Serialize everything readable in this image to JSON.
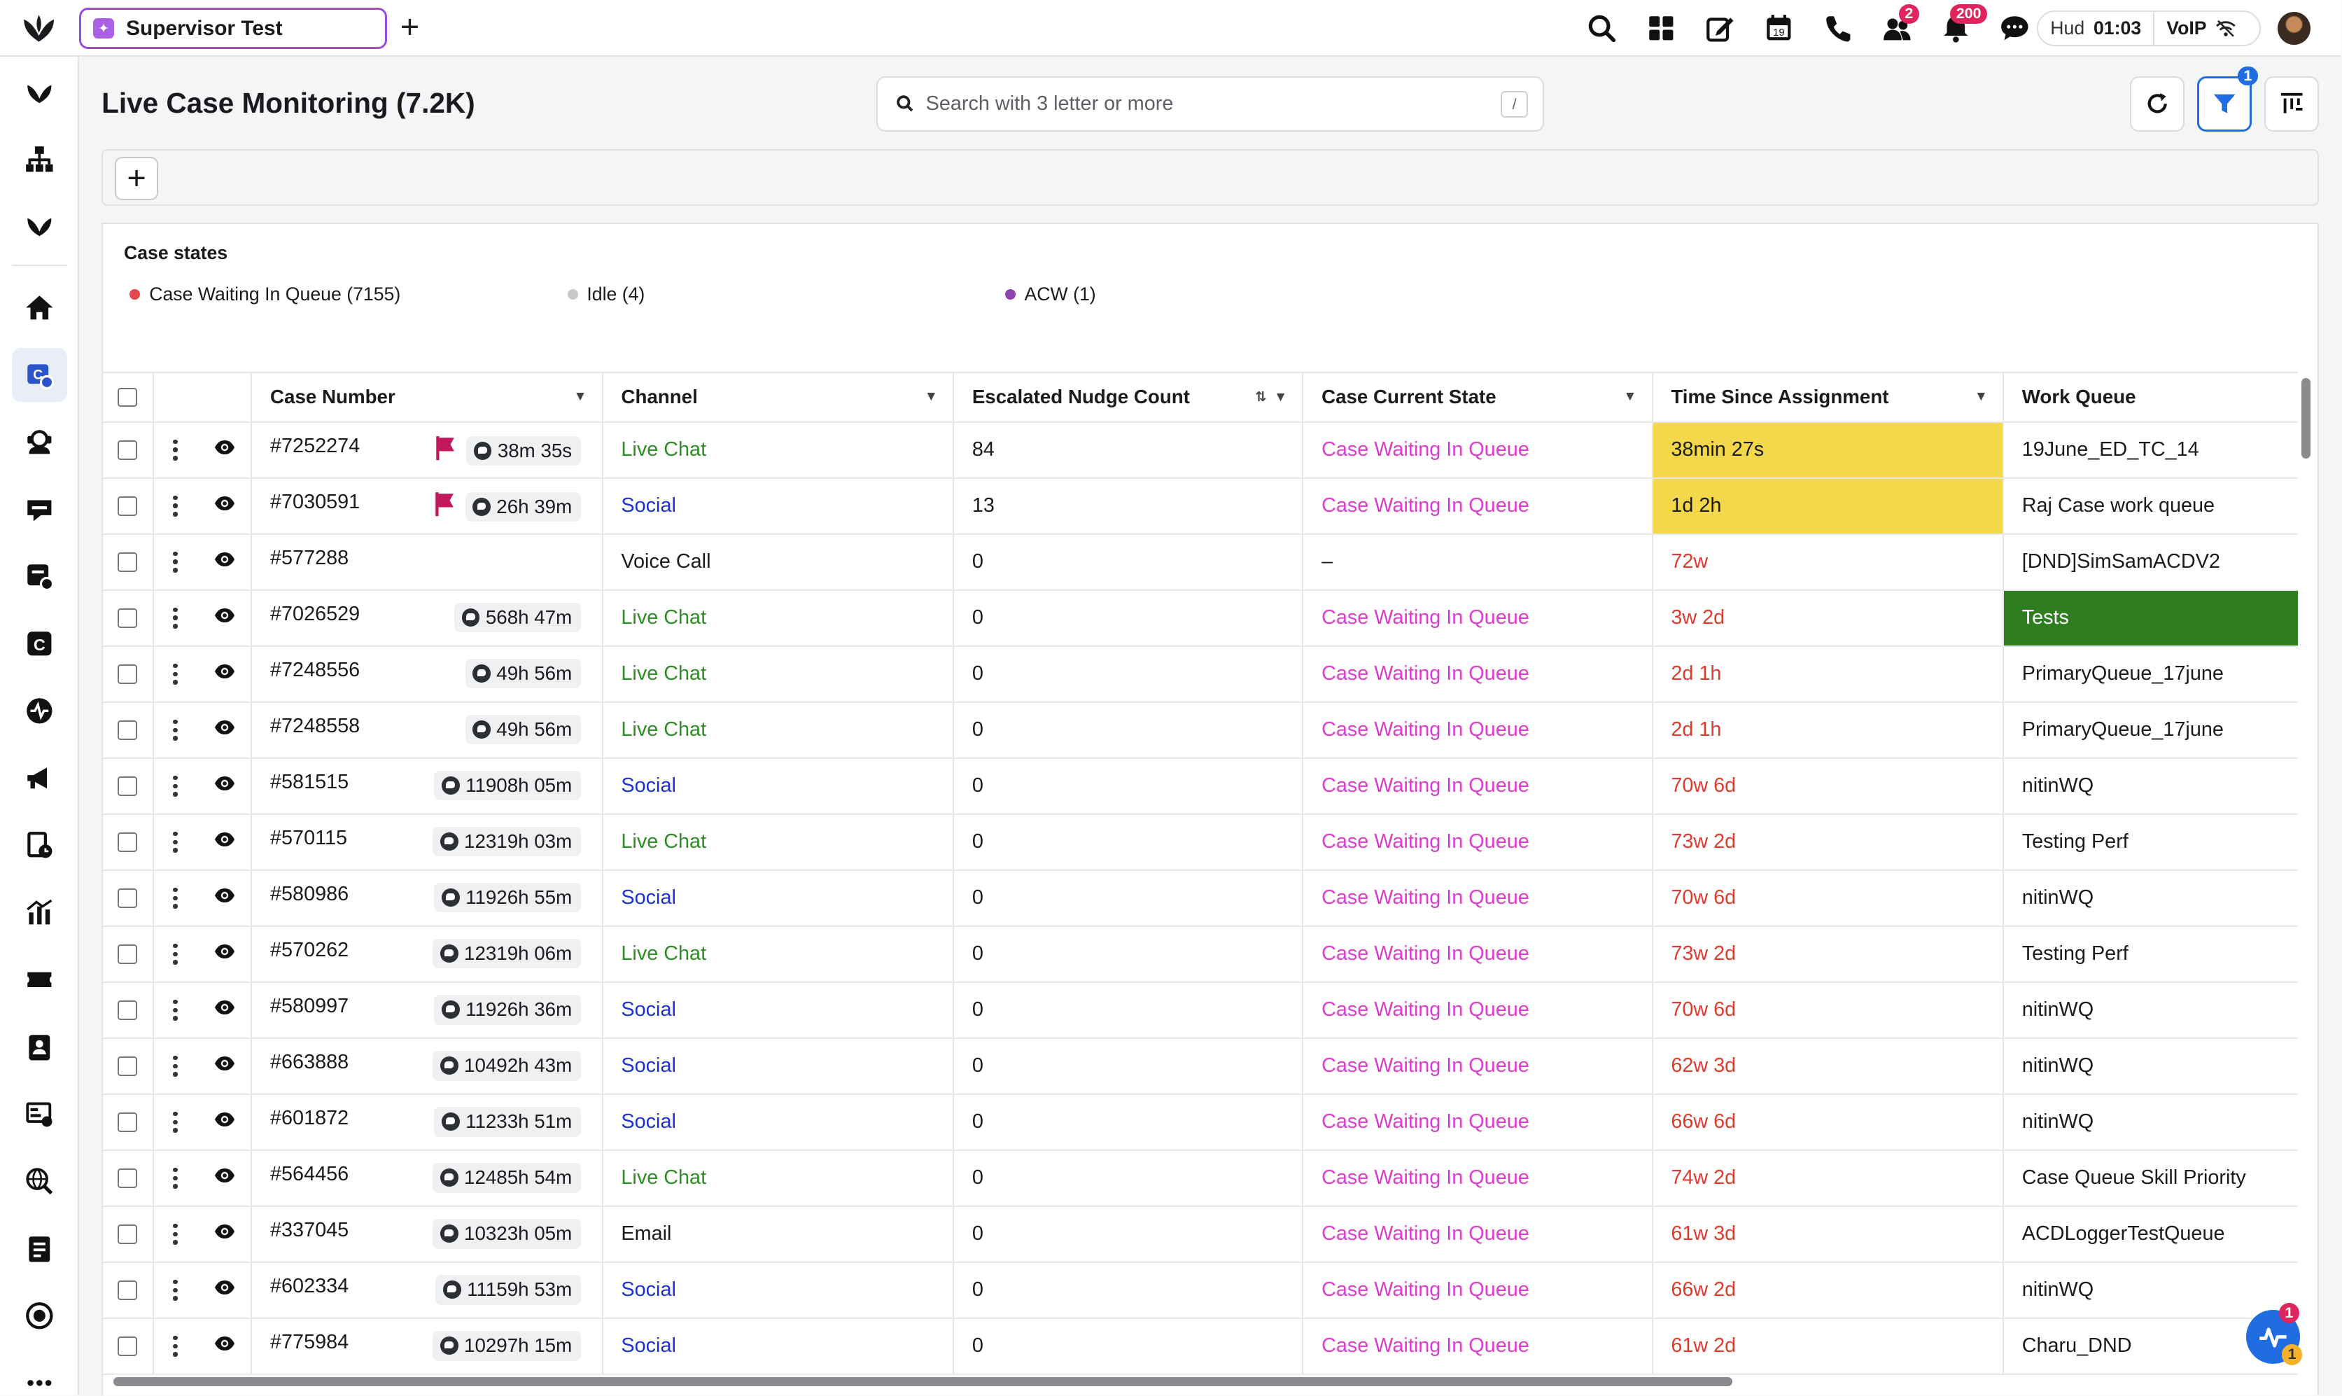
{
  "topbar": {
    "tab_label": "Supervisor Test",
    "notifications_badge": "2",
    "alerts_badge": "200",
    "hud_label": "Hud",
    "hud_time": "01:03",
    "voip_label": "VoIP"
  },
  "icons": {
    "brand": "sprinklr-logo-icon",
    "search": "search-icon",
    "apps": "grid-icon",
    "compose": "edit-icon",
    "calendar": "calendar-icon",
    "phone": "phone-icon",
    "users": "users-icon",
    "bell": "bell-icon",
    "chat": "chat-icon"
  },
  "calendar_day": "19",
  "page": {
    "title": "Live Case Monitoring (7.2K)",
    "search_placeholder": "Search with 3 letter or more",
    "search_shortcut": "/",
    "filter_badge": "1"
  },
  "case_states": {
    "title": "Case states",
    "items": [
      {
        "label": "Case Waiting In Queue (7155)",
        "color": "#e5484d"
      },
      {
        "label": "Idle (4)",
        "color": "#c8c9cd"
      },
      {
        "label": "ACW (1)",
        "color": "#8e44ad"
      }
    ]
  },
  "table": {
    "columns": [
      "Case Number",
      "Channel",
      "Escalated Nudge Count",
      "Case Current State",
      "Time Since Assignment",
      "Work Queue"
    ],
    "rows": [
      {
        "case": "#7252274",
        "flag": true,
        "timer": "38m 35s",
        "channel": "Live Chat",
        "chan_style": "live",
        "nudge": "84",
        "state": "Case Waiting In Queue",
        "state_style": "pink",
        "time": "38min 27s",
        "time_style": "yellow",
        "wq": "19June_ED_TC_14",
        "wq_style": ""
      },
      {
        "case": "#7030591",
        "flag": true,
        "timer": "26h 39m",
        "channel": "Social",
        "chan_style": "social",
        "nudge": "13",
        "state": "Case Waiting In Queue",
        "state_style": "pink",
        "time": "1d 2h",
        "time_style": "yellow",
        "wq": "Raj Case work queue",
        "wq_style": ""
      },
      {
        "case": "#577288",
        "flag": false,
        "timer": "",
        "channel": "Voice Call",
        "chan_style": "plain",
        "nudge": "0",
        "state": "–",
        "state_style": "plain",
        "time": "72w",
        "time_style": "red",
        "wq": "[DND]SimSamACDV2",
        "wq_style": ""
      },
      {
        "case": "#7026529",
        "flag": false,
        "timer": "568h 47m",
        "channel": "Live Chat",
        "chan_style": "live",
        "nudge": "0",
        "state": "Case Waiting In Queue",
        "state_style": "pink",
        "time": "3w 2d",
        "time_style": "red",
        "wq": "Tests",
        "wq_style": "green"
      },
      {
        "case": "#7248556",
        "flag": false,
        "timer": "49h 56m",
        "channel": "Live Chat",
        "chan_style": "live",
        "nudge": "0",
        "state": "Case Waiting In Queue",
        "state_style": "pink",
        "time": "2d 1h",
        "time_style": "red",
        "wq": "PrimaryQueue_17june",
        "wq_style": ""
      },
      {
        "case": "#7248558",
        "flag": false,
        "timer": "49h 56m",
        "channel": "Live Chat",
        "chan_style": "live",
        "nudge": "0",
        "state": "Case Waiting In Queue",
        "state_style": "pink",
        "time": "2d 1h",
        "time_style": "red",
        "wq": "PrimaryQueue_17june",
        "wq_style": ""
      },
      {
        "case": "#581515",
        "flag": false,
        "timer": "11908h 05m",
        "channel": "Social",
        "chan_style": "social",
        "nudge": "0",
        "state": "Case Waiting In Queue",
        "state_style": "pink",
        "time": "70w 6d",
        "time_style": "red",
        "wq": "nitinWQ",
        "wq_style": ""
      },
      {
        "case": "#570115",
        "flag": false,
        "timer": "12319h 03m",
        "channel": "Live Chat",
        "chan_style": "live",
        "nudge": "0",
        "state": "Case Waiting In Queue",
        "state_style": "pink",
        "time": "73w 2d",
        "time_style": "red",
        "wq": "Testing Perf",
        "wq_style": ""
      },
      {
        "case": "#580986",
        "flag": false,
        "timer": "11926h 55m",
        "channel": "Social",
        "chan_style": "social",
        "nudge": "0",
        "state": "Case Waiting In Queue",
        "state_style": "pink",
        "time": "70w 6d",
        "time_style": "red",
        "wq": "nitinWQ",
        "wq_style": ""
      },
      {
        "case": "#570262",
        "flag": false,
        "timer": "12319h 06m",
        "channel": "Live Chat",
        "chan_style": "live",
        "nudge": "0",
        "state": "Case Waiting In Queue",
        "state_style": "pink",
        "time": "73w 2d",
        "time_style": "red",
        "wq": "Testing Perf",
        "wq_style": ""
      },
      {
        "case": "#580997",
        "flag": false,
        "timer": "11926h 36m",
        "channel": "Social",
        "chan_style": "social",
        "nudge": "0",
        "state": "Case Waiting In Queue",
        "state_style": "pink",
        "time": "70w 6d",
        "time_style": "red",
        "wq": "nitinWQ",
        "wq_style": ""
      },
      {
        "case": "#663888",
        "flag": false,
        "timer": "10492h 43m",
        "channel": "Social",
        "chan_style": "social",
        "nudge": "0",
        "state": "Case Waiting In Queue",
        "state_style": "pink",
        "time": "62w 3d",
        "time_style": "red",
        "wq": "nitinWQ",
        "wq_style": ""
      },
      {
        "case": "#601872",
        "flag": false,
        "timer": "11233h 51m",
        "channel": "Social",
        "chan_style": "social",
        "nudge": "0",
        "state": "Case Waiting In Queue",
        "state_style": "pink",
        "time": "66w 6d",
        "time_style": "red",
        "wq": "nitinWQ",
        "wq_style": ""
      },
      {
        "case": "#564456",
        "flag": false,
        "timer": "12485h 54m",
        "channel": "Live Chat",
        "chan_style": "live",
        "nudge": "0",
        "state": "Case Waiting In Queue",
        "state_style": "pink",
        "time": "74w 2d",
        "time_style": "red",
        "wq": "Case Queue Skill Priority",
        "wq_style": ""
      },
      {
        "case": "#337045",
        "flag": false,
        "timer": "10323h 05m",
        "channel": "Email",
        "chan_style": "plain",
        "nudge": "0",
        "state": "Case Waiting In Queue",
        "state_style": "pink",
        "time": "61w 3d",
        "time_style": "red",
        "wq": "ACDLoggerTestQueue",
        "wq_style": ""
      },
      {
        "case": "#602334",
        "flag": false,
        "timer": "11159h 53m",
        "channel": "Social",
        "chan_style": "social",
        "nudge": "0",
        "state": "Case Waiting In Queue",
        "state_style": "pink",
        "time": "66w 2d",
        "time_style": "red",
        "wq": "nitinWQ",
        "wq_style": ""
      },
      {
        "case": "#775984",
        "flag": false,
        "timer": "10297h 15m",
        "channel": "Social",
        "chan_style": "social",
        "nudge": "0",
        "state": "Case Waiting In Queue",
        "state_style": "pink",
        "time": "61w 2d",
        "time_style": "red",
        "wq": "Charu_DND",
        "wq_style": ""
      }
    ]
  },
  "fab": {
    "badge_top": "1",
    "badge_bottom": "1"
  },
  "colors": {
    "accent": "#1f6de0",
    "tab_border": "#9b4de0",
    "flag": "#c2185b"
  }
}
